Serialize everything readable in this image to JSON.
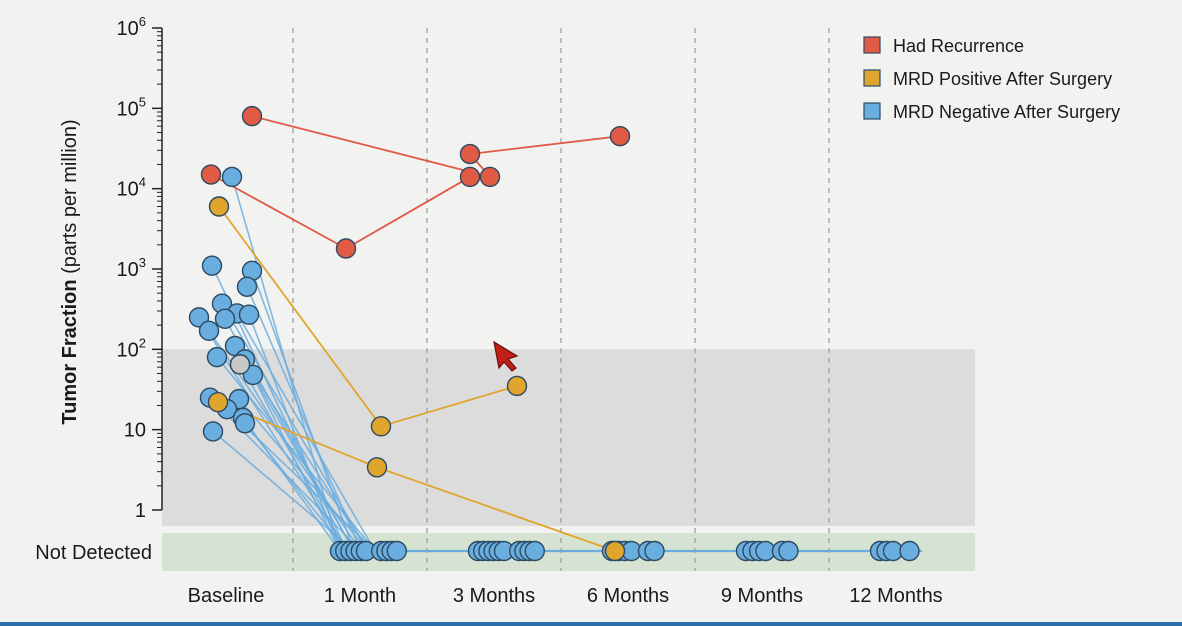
{
  "chart_data": {
    "type": "line",
    "categories": [
      "Baseline",
      "1 Month",
      "3 Months",
      "6 Months",
      "9 Months",
      "12 Months"
    ],
    "ylabel_bold": "Tumor Fraction",
    "ylabel_rest": " (parts per million)",
    "yscale": "log",
    "yticks": [
      {
        "value": 1000000,
        "base": "10",
        "exp": "6"
      },
      {
        "value": 100000,
        "base": "10",
        "exp": "5"
      },
      {
        "value": 10000,
        "base": "10",
        "exp": "4"
      },
      {
        "value": 1000,
        "base": "10",
        "exp": "3"
      },
      {
        "value": 100,
        "base": "10",
        "exp": "2"
      },
      {
        "value": 10,
        "base": "10",
        "exp": ""
      },
      {
        "value": 1,
        "base": "1",
        "exp": ""
      }
    ],
    "not_detected_label": "Not Detected",
    "regions": [
      {
        "name": "below-threshold",
        "from": 1,
        "to": 100,
        "color": "#dcdcdc"
      },
      {
        "name": "not-detected",
        "color": "#d6e3d2"
      }
    ],
    "legend": [
      {
        "label": "Had Recurrence",
        "color": "#e05a44"
      },
      {
        "label": "MRD Positive After Surgery",
        "color": "#e0a52c"
      },
      {
        "label": "MRD Negative After Surgery",
        "color": "#6aaee0"
      }
    ],
    "series": [
      {
        "group": "recurrence",
        "points": [
          [
            "Baseline",
            80000
          ],
          [
            "3 Months",
            14000
          ],
          [
            "3 Months",
            27000
          ],
          [
            "6 Months",
            45000
          ]
        ]
      },
      {
        "group": "recurrence",
        "points": [
          [
            "Baseline",
            15000
          ],
          [
            "1 Month",
            1800
          ],
          [
            "3 Months",
            14000
          ]
        ]
      },
      {
        "group": "mrd_positive",
        "points": [
          [
            "Baseline",
            6000
          ],
          [
            "1 Month",
            11
          ],
          [
            "3 Months",
            35
          ]
        ]
      },
      {
        "group": "mrd_positive",
        "points": [
          [
            "Baseline",
            22
          ],
          [
            "1 Month",
            3.4
          ],
          [
            "6 Months",
            "ND"
          ]
        ]
      },
      {
        "group": "mrd_negative_nd",
        "points": [
          [
            "1 Month",
            "ND"
          ],
          [
            "3 Months",
            "ND"
          ],
          [
            "6 Months",
            "ND"
          ],
          [
            "9 Months",
            "ND"
          ],
          [
            "12 Months",
            "ND"
          ]
        ]
      }
    ],
    "baseline_mrd_negative": [
      14000,
      1100,
      950,
      600,
      370,
      280,
      270,
      250,
      240,
      170,
      110,
      80,
      75,
      65,
      48,
      25,
      24,
      18,
      14,
      12,
      9.5
    ],
    "nd_markers": {
      "1 Month": 10,
      "3 Months": 10,
      "6 Months": 6,
      "9 Months": 6,
      "12 Months": 4
    },
    "colors": {
      "recurrence": "#e05a44",
      "mrd_positive": "#e0a52c",
      "mrd_negative": "#6aaee0",
      "grey_point": "#c8c8c8",
      "outline": "#2d4a63"
    }
  }
}
